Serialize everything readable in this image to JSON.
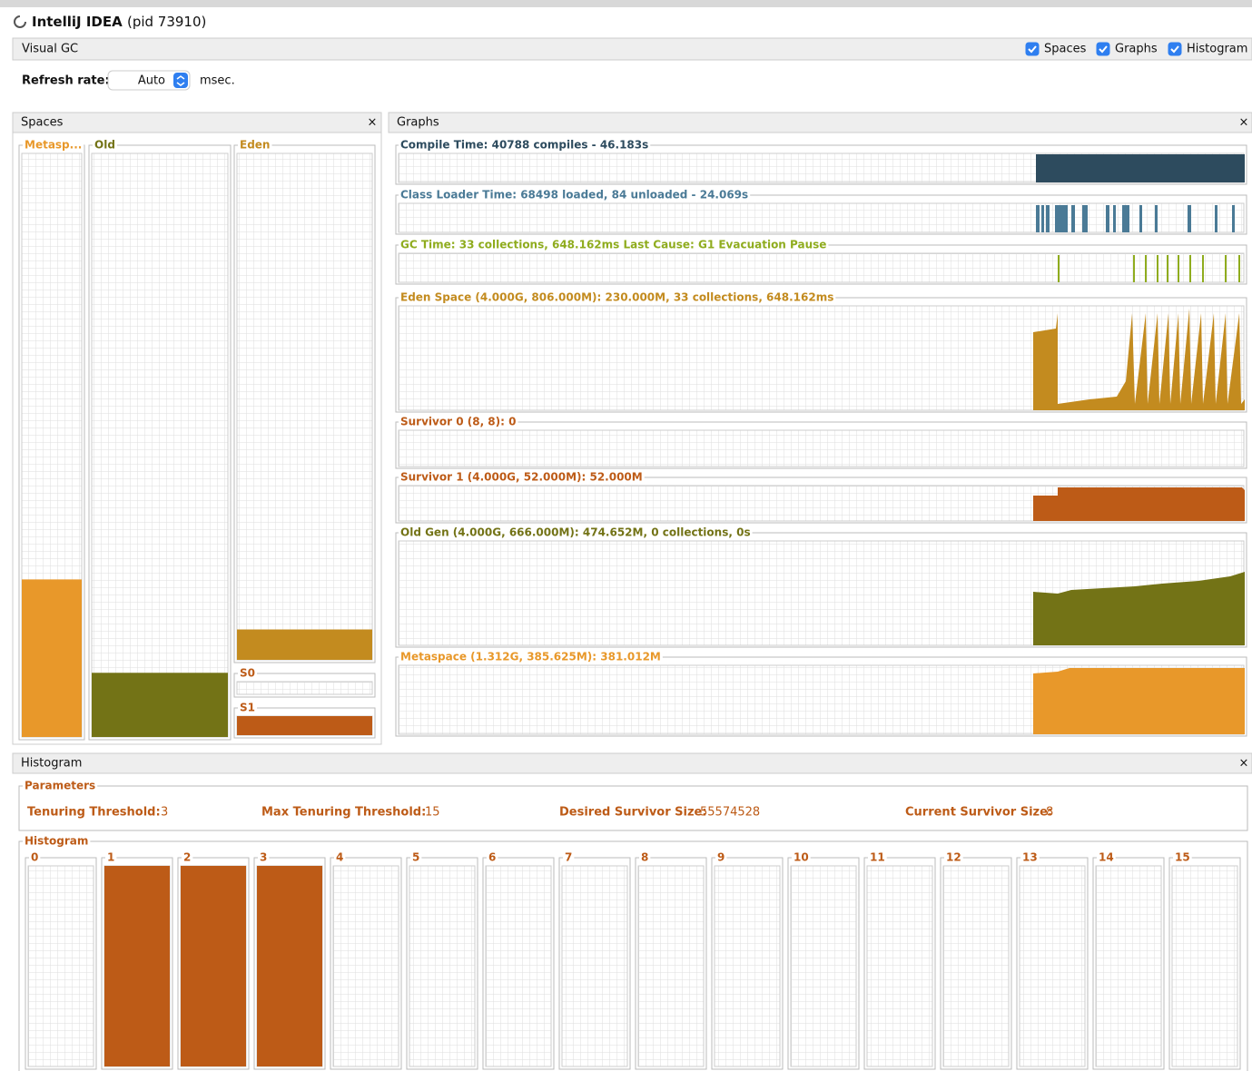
{
  "window": {
    "title": "IntelliJ IDEA",
    "pid": "(pid 73910)"
  },
  "toolbar": {
    "title": "Visual GC",
    "checkboxes": [
      {
        "label": "Spaces",
        "checked": true
      },
      {
        "label": "Graphs",
        "checked": true
      },
      {
        "label": "Histogram",
        "checked": true
      }
    ]
  },
  "refresh": {
    "label": "Refresh rate:",
    "value": "Auto",
    "unit": "msec."
  },
  "spaces": {
    "title": "Spaces",
    "items": [
      {
        "name": "Metasp...",
        "fill": 27,
        "color": "#e8982a"
      },
      {
        "name": "Old",
        "fill": 11,
        "color": "#737316"
      },
      {
        "name": "Eden",
        "fill": 6,
        "color": "#c38b1f"
      },
      {
        "name": "S0",
        "fill": 0,
        "color": "#bd5b17"
      },
      {
        "name": "S1",
        "fill": 100,
        "color": "#bd5b17"
      }
    ]
  },
  "graphs": {
    "title": "Graphs",
    "items": [
      {
        "label": "Compile Time: 40788 compiles - 46.183s",
        "color": "#2d4b5e"
      },
      {
        "label": "Class Loader Time: 68498 loaded, 84 unloaded - 24.069s",
        "color": "#4a7a96"
      },
      {
        "label": "GC Time: 33 collections, 648.162ms Last Cause: G1 Evacuation Pause",
        "color": "#8fac1e"
      },
      {
        "label": "Eden Space (4.000G, 806.000M): 230.000M, 33 collections, 648.162ms",
        "color": "#c38b1f"
      },
      {
        "label": "Survivor 0 (8, 8): 0",
        "color": "#bd5b17"
      },
      {
        "label": "Survivor 1 (4.000G, 52.000M): 52.000M",
        "color": "#bd5b17"
      },
      {
        "label": "Old Gen (4.000G, 666.000M): 474.652M, 0 collections, 0s",
        "color": "#737316"
      },
      {
        "label": "Metaspace (1.312G, 385.625M): 381.012M",
        "color": "#e8982a"
      }
    ]
  },
  "histogram": {
    "title": "Histogram",
    "parameters": {
      "title": "Parameters",
      "items": [
        {
          "label": "Tenuring Threshold:",
          "value": 3
        },
        {
          "label": "Max Tenuring Threshold:",
          "value": 15
        },
        {
          "label": "Desired Survivor Size:",
          "value": 55574528
        },
        {
          "label": "Current Survivor Size:",
          "value": 8
        }
      ]
    },
    "chart": {
      "title": "Histogram",
      "color": "#bd5b17",
      "ages": [
        0,
        1,
        2,
        3,
        4,
        5,
        6,
        7,
        8,
        9,
        10,
        11,
        12,
        13,
        14,
        15
      ],
      "fill": [
        0,
        100,
        100,
        100,
        0,
        0,
        0,
        0,
        0,
        0,
        0,
        0,
        0,
        0,
        0,
        0
      ]
    }
  }
}
